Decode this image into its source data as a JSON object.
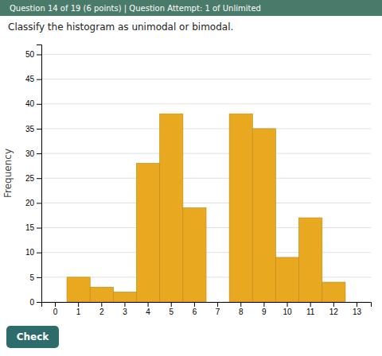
{
  "chart_data": {
    "type": "bar",
    "annotations": [
      "Question 14 of 19 (6 points)  |  Question Attempt: 1 of Unlimited",
      "Classify the histogram as unimodal or bimodal.",
      "Check"
    ],
    "categories": [
      0,
      1,
      2,
      3,
      4,
      5,
      6,
      7,
      8,
      9,
      10,
      11,
      12,
      13
    ],
    "values": [
      0,
      5,
      3,
      2,
      28,
      38,
      19,
      0,
      38,
      35,
      9,
      17,
      4,
      0
    ],
    "color": "#E8A820",
    "y_label": "Frequency",
    "ylim": [
      0,
      52
    ],
    "yticks": [
      0,
      5,
      10,
      15,
      20,
      25,
      30,
      35,
      40,
      45,
      50
    ],
    "grid": true
  }
}
